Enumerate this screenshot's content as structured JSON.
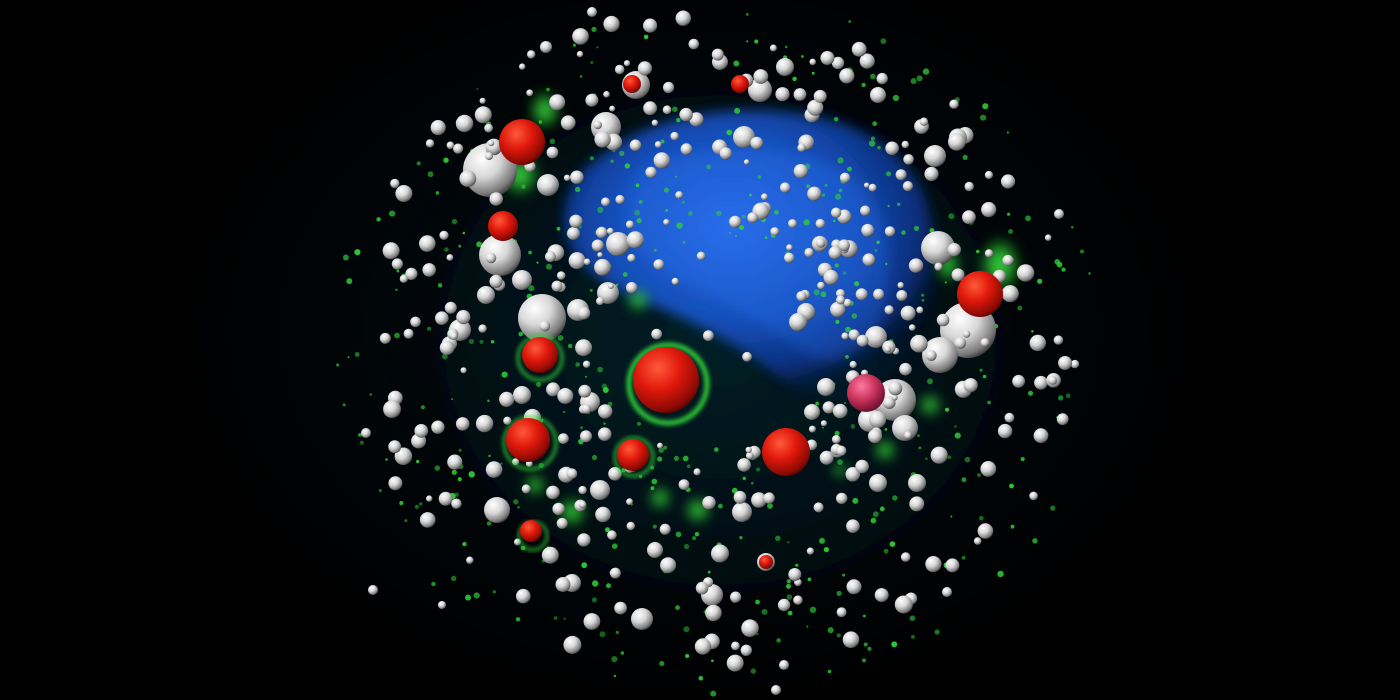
{
  "image": {
    "background_color": "#000000",
    "colors": {
      "nucleus": "#1a5fd0",
      "vesicle_green": "#2fcf3a",
      "droplet_red": "#e01a0f",
      "droplet_magenta": "#c8325a",
      "sphere_white": "#e8e8e8"
    }
  }
}
